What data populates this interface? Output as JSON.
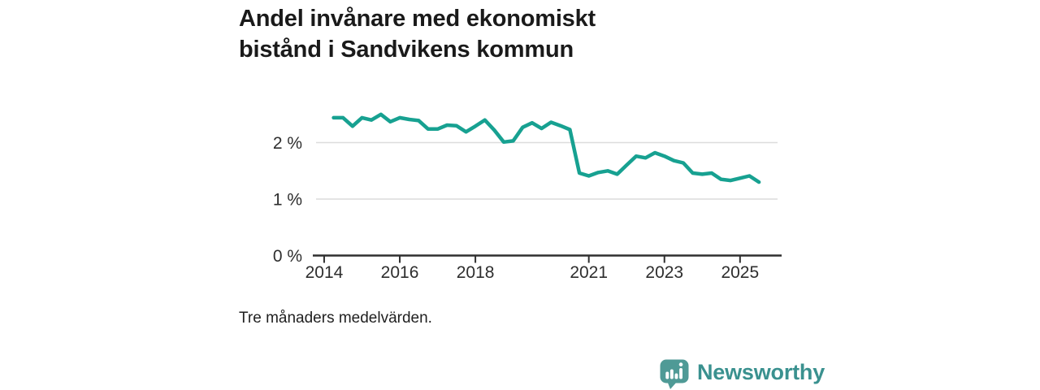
{
  "title_lines": [
    "Andel invånare med ekonomiskt",
    "bistånd i Sandvikens kommun"
  ],
  "caption": "Tre månaders medelvärden.",
  "brand": {
    "name": "Newsworthy",
    "wordmark_color": "#3a918f",
    "icon_color": "#4f9a96"
  },
  "colors": {
    "line": "#17a191",
    "grid": "#dcdcdc",
    "axis": "#2f2f2f",
    "tick_text": "#2e2e2e"
  },
  "chart_data": {
    "type": "line",
    "title": "Andel invånare med ekonomiskt bistånd i Sandvikens kommun",
    "unit": "%",
    "note": "Tre månaders medelvärden.",
    "grid": "horizontal-only",
    "legend": "none",
    "xlim": [
      2013.7,
      2026.1
    ],
    "ylim": [
      0,
      2.6
    ],
    "x_tick_labels": [
      "2014",
      "2016",
      "2018",
      "2021",
      "2023",
      "2025"
    ],
    "x_tick_values": [
      2014,
      2016,
      2018,
      2021,
      2023,
      2025
    ],
    "y_tick_labels": [
      "0 %",
      "1 %",
      "2 %"
    ],
    "y_tick_values": [
      0,
      1,
      2
    ],
    "series": [
      {
        "name": "Andel invånare med ekonomiskt bistånd",
        "x": [
          2014.25,
          2014.5,
          2014.75,
          2015.0,
          2015.25,
          2015.5,
          2015.75,
          2016.0,
          2016.25,
          2016.5,
          2016.75,
          2017.0,
          2017.25,
          2017.5,
          2017.75,
          2018.0,
          2018.25,
          2018.5,
          2018.75,
          2019.0,
          2019.25,
          2019.5,
          2019.75,
          2020.0,
          2020.25,
          2020.5,
          2020.75,
          2021.0,
          2021.25,
          2021.5,
          2021.75,
          2022.0,
          2022.25,
          2022.5,
          2022.75,
          2023.0,
          2023.25,
          2023.5,
          2023.75,
          2024.0,
          2024.25,
          2024.5,
          2024.75,
          2025.0,
          2025.25,
          2025.5
        ],
        "values": [
          2.44,
          2.44,
          2.29,
          2.44,
          2.4,
          2.5,
          2.37,
          2.44,
          2.41,
          2.39,
          2.24,
          2.24,
          2.31,
          2.3,
          2.19,
          2.29,
          2.4,
          2.22,
          2.01,
          2.03,
          2.27,
          2.35,
          2.25,
          2.36,
          2.3,
          2.23,
          1.46,
          1.41,
          1.47,
          1.5,
          1.44,
          1.6,
          1.76,
          1.73,
          1.82,
          1.76,
          1.68,
          1.64,
          1.46,
          1.44,
          1.46,
          1.35,
          1.33,
          1.37,
          1.41,
          1.3
        ]
      }
    ]
  }
}
